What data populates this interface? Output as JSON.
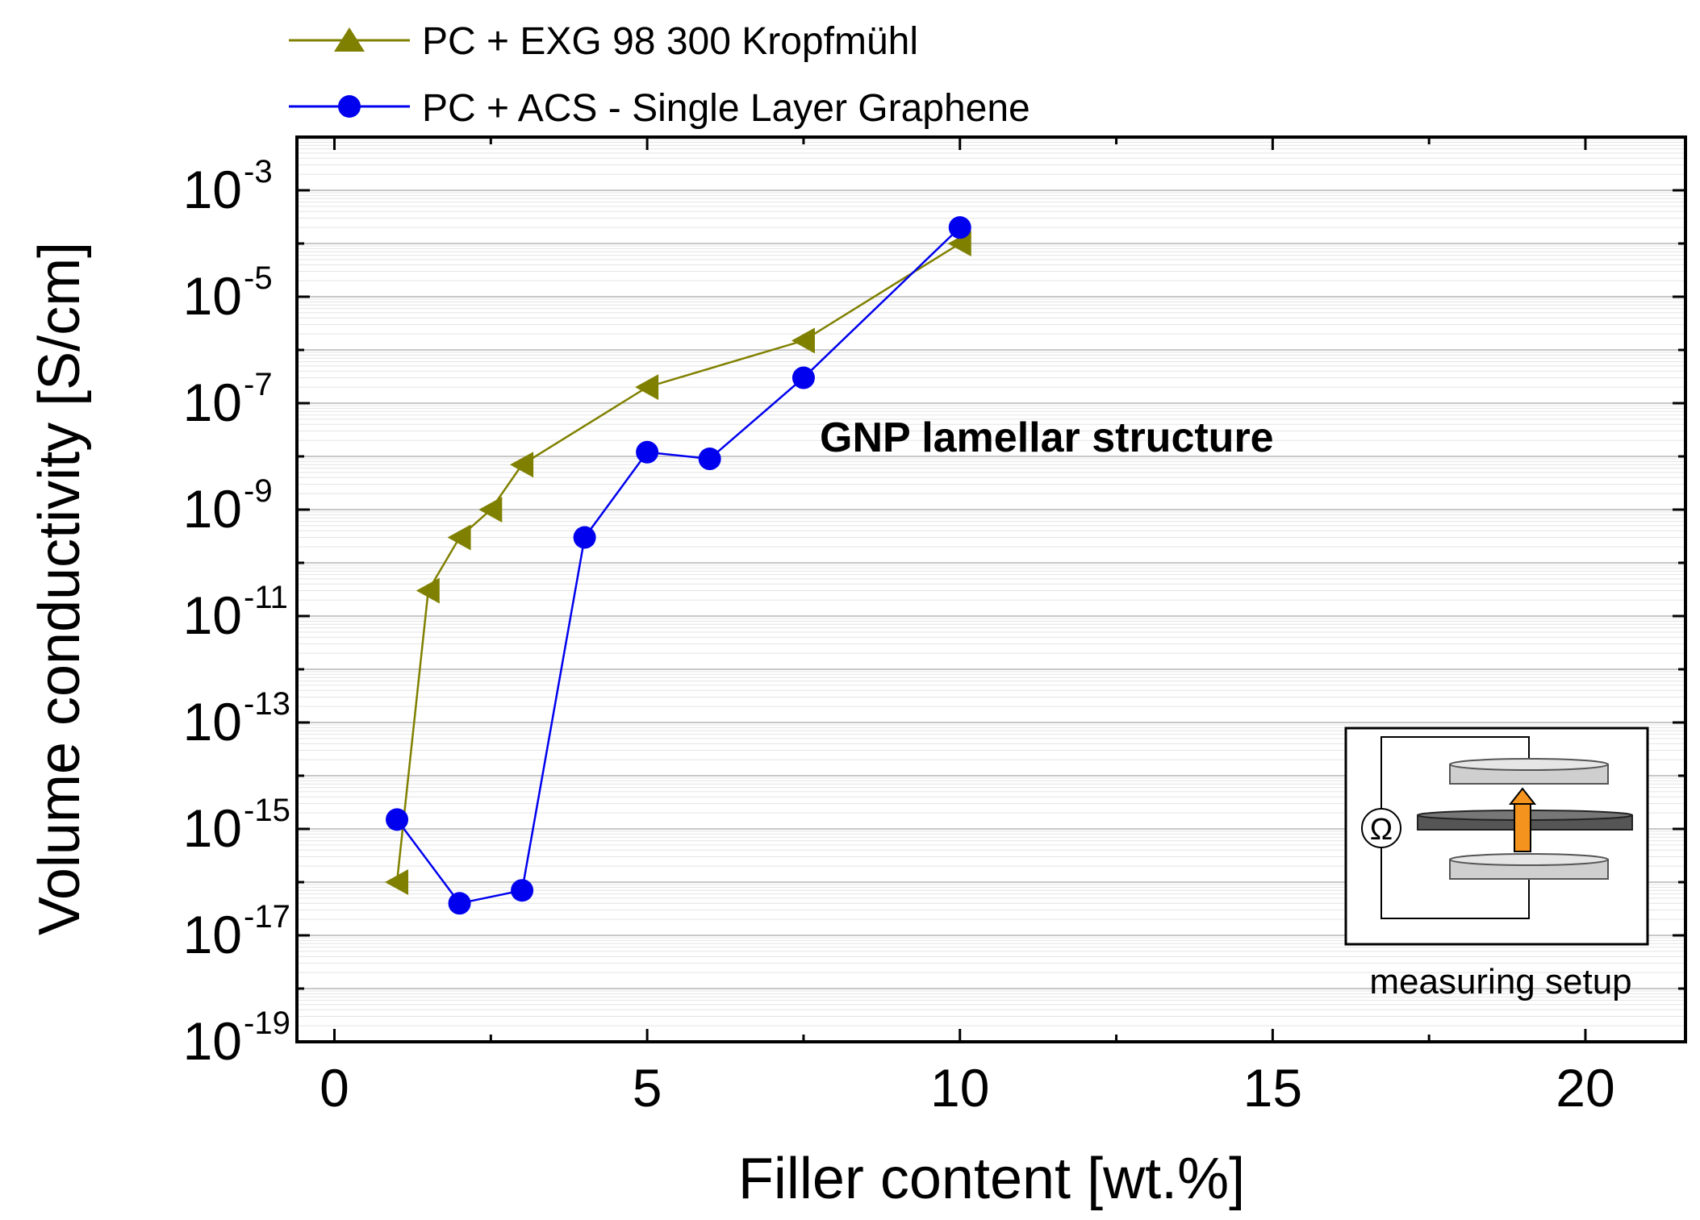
{
  "chart_data": {
    "type": "line",
    "title": "",
    "xlabel": "Filler content [wt.%]",
    "ylabel": "Volume conductivity [S/cm]",
    "xlim": [
      -0.6,
      21.6
    ],
    "ylim_log10": [
      -19,
      -2
    ],
    "y_scale": "log",
    "x_ticks": [
      0,
      5,
      10,
      15,
      20
    ],
    "y_tick_exponents": [
      -3,
      -5,
      -7,
      -9,
      -11,
      -13,
      -15,
      -17,
      -19
    ],
    "y_tick_base": "10",
    "grid": true,
    "legend_position": "top-left (outside plot)",
    "series": [
      {
        "name": "PC + EXG 98 300 Kropfmühl",
        "color": "#808000",
        "marker": "triangle",
        "x": [
          1,
          1.5,
          2,
          2.5,
          3,
          5,
          7.5,
          10
        ],
        "y": [
          1e-16,
          3e-11,
          3e-10,
          1e-09,
          7e-09,
          2e-07,
          1.5e-06,
          0.0001
        ]
      },
      {
        "name": "PC + ACS - Single Layer Graphene",
        "color": "#0000ee",
        "marker": "circle",
        "x": [
          1,
          2,
          3,
          4,
          5,
          6,
          7.5,
          10
        ],
        "y": [
          1.5e-15,
          4e-17,
          7e-17,
          3e-10,
          1.2e-08,
          9e-09,
          3e-07,
          0.0002
        ]
      }
    ],
    "annotations": [
      "GNP lamellar structure"
    ],
    "inset": {
      "caption": "measuring setup",
      "ohm_symbol": "Ω"
    }
  }
}
